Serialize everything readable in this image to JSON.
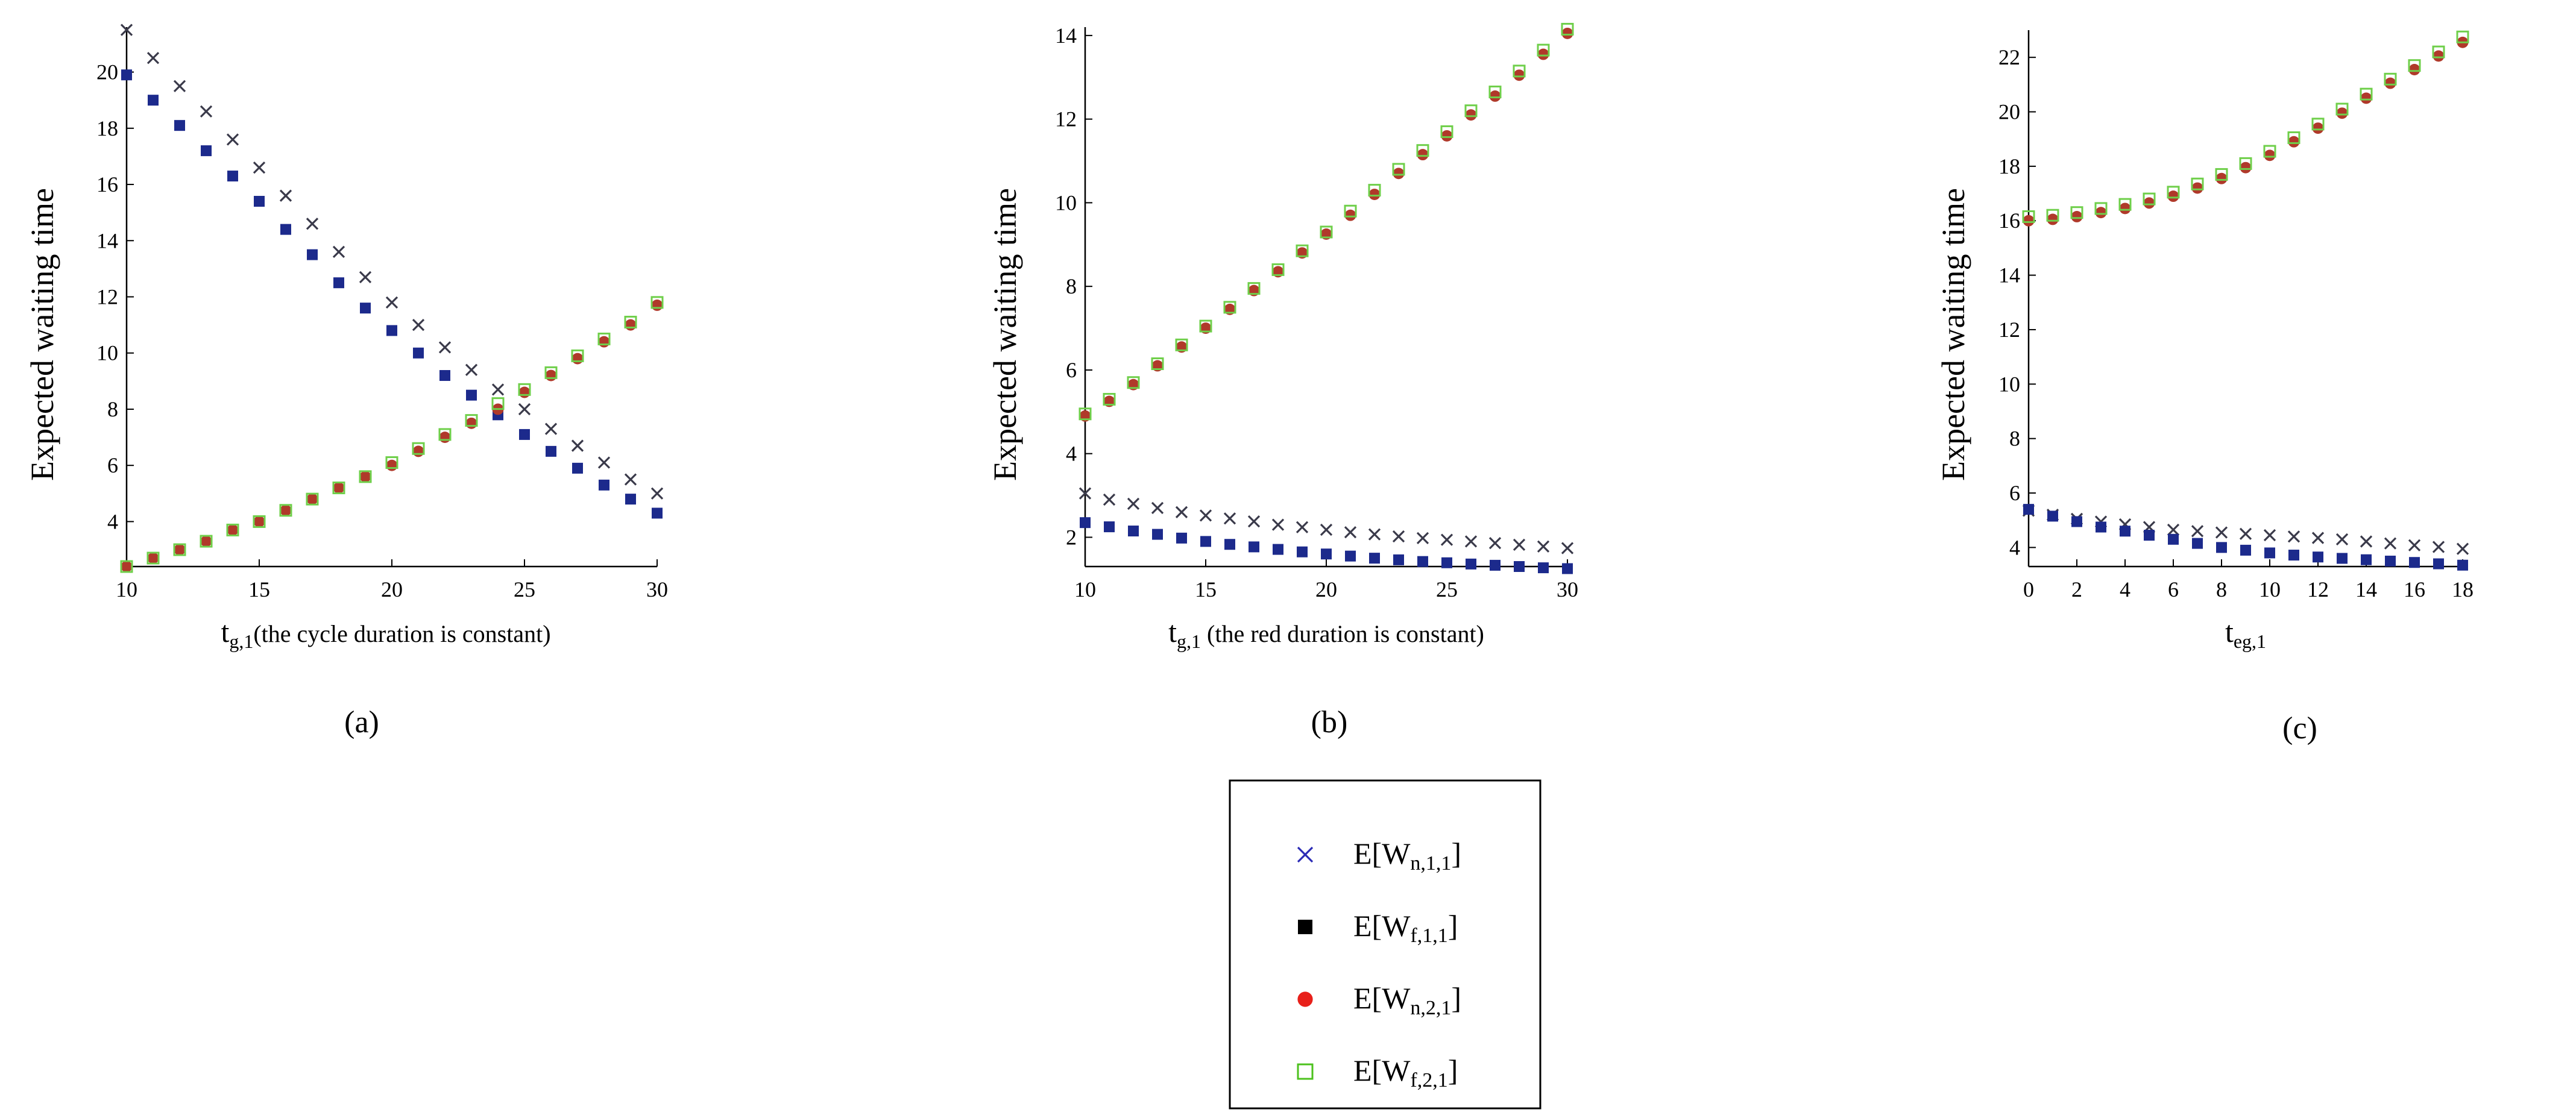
{
  "figure": {
    "captions": [
      "(a)",
      "(b)",
      "(c)"
    ]
  },
  "legend": {
    "entries": [
      {
        "series": "E[W_n,1,1]",
        "main": "E[W",
        "sub": "n,1,1",
        "close": "]",
        "marker": "x",
        "color": "#2b2bb5"
      },
      {
        "series": "E[W_f,1,1]",
        "main": "E[W",
        "sub": "f,1,1",
        "close": "]",
        "marker": "square",
        "color": "#000000"
      },
      {
        "series": "E[W_n,2,1]",
        "main": "E[W",
        "sub": "n,2,1",
        "close": "]",
        "marker": "circle",
        "color": "#e8201a"
      },
      {
        "series": "E[W_f,2,1]",
        "main": "E[W",
        "sub": "f,2,1",
        "close": "]",
        "marker": "open-square",
        "color": "#4cc21e"
      }
    ]
  },
  "series_styles": {
    "Wn11": {
      "marker": "x",
      "color": "#3a3a4a"
    },
    "Wf11": {
      "marker": "square",
      "color": "#1c2a8c"
    },
    "Wn21": {
      "marker": "circle",
      "color": "#b0392a"
    },
    "Wf21": {
      "marker": "open-square",
      "color": "#6fcf4a"
    }
  },
  "chart_data": [
    {
      "id": "a",
      "type": "scatter",
      "title": "",
      "ylabel": "Expected waiting time",
      "xlabel_main": "t",
      "xlabel_sub": "g,1",
      "xlabel_rest": "(the cycle duration is constant)",
      "xlim": [
        10,
        30
      ],
      "ylim": [
        2.4,
        21.6
      ],
      "xticks": [
        10,
        15,
        20,
        25,
        30
      ],
      "yticks": [
        4,
        6,
        8,
        10,
        12,
        14,
        16,
        18,
        20
      ],
      "x": [
        10,
        11,
        12,
        13,
        14,
        15,
        16,
        17,
        18,
        19,
        20,
        21,
        22,
        23,
        24,
        25,
        26,
        27,
        28,
        29,
        30
      ],
      "series": [
        {
          "name": "E[W_n,1,1]",
          "key": "Wn11",
          "values": [
            21.5,
            20.5,
            19.5,
            18.6,
            17.6,
            16.6,
            15.6,
            14.6,
            13.6,
            12.7,
            11.8,
            11.0,
            10.2,
            9.4,
            8.7,
            8.0,
            7.3,
            6.7,
            6.1,
            5.5,
            5.0
          ]
        },
        {
          "name": "E[W_f,1,1]",
          "key": "Wf11",
          "values": [
            19.9,
            19.0,
            18.1,
            17.2,
            16.3,
            15.4,
            14.4,
            13.5,
            12.5,
            11.6,
            10.8,
            10.0,
            9.2,
            8.5,
            7.8,
            7.1,
            6.5,
            5.9,
            5.3,
            4.8,
            4.3
          ]
        },
        {
          "name": "E[W_n,2,1]",
          "key": "Wn21",
          "values": [
            2.4,
            2.7,
            3.0,
            3.3,
            3.7,
            4.0,
            4.4,
            4.8,
            5.2,
            5.6,
            6.0,
            6.5,
            7.0,
            7.5,
            8.0,
            8.6,
            9.2,
            9.8,
            10.4,
            11.0,
            11.7
          ]
        },
        {
          "name": "E[W_f,2,1]",
          "key": "Wf21",
          "values": [
            2.4,
            2.7,
            3.0,
            3.3,
            3.7,
            4.0,
            4.4,
            4.8,
            5.2,
            5.6,
            6.1,
            6.6,
            7.1,
            7.6,
            8.2,
            8.7,
            9.3,
            9.9,
            10.5,
            11.1,
            11.8
          ]
        }
      ]
    },
    {
      "id": "b",
      "type": "scatter",
      "title": "",
      "ylabel": "Expected waiting time",
      "xlabel_main": "t",
      "xlabel_sub": "g,1",
      "xlabel_rest": " (the red duration is constant)",
      "xlim": [
        10,
        30
      ],
      "ylim": [
        1.3,
        14.2
      ],
      "xticks": [
        10,
        15,
        20,
        25,
        30
      ],
      "yticks": [
        2,
        4,
        6,
        8,
        10,
        12,
        14
      ],
      "x": [
        10,
        11,
        12,
        13,
        14,
        15,
        16,
        17,
        18,
        19,
        20,
        21,
        22,
        23,
        24,
        25,
        26,
        27,
        28,
        29,
        30
      ],
      "series": [
        {
          "name": "E[W_n,1,1]",
          "key": "Wn11",
          "values": [
            3.05,
            2.9,
            2.8,
            2.7,
            2.6,
            2.52,
            2.45,
            2.38,
            2.3,
            2.24,
            2.18,
            2.12,
            2.07,
            2.02,
            1.98,
            1.94,
            1.9,
            1.86,
            1.82,
            1.78,
            1.74
          ]
        },
        {
          "name": "E[W_f,1,1]",
          "key": "Wf11",
          "values": [
            2.35,
            2.25,
            2.15,
            2.07,
            1.98,
            1.9,
            1.83,
            1.77,
            1.71,
            1.65,
            1.6,
            1.55,
            1.5,
            1.46,
            1.42,
            1.39,
            1.36,
            1.33,
            1.3,
            1.27,
            1.25
          ]
        },
        {
          "name": "E[W_n,2,1]",
          "key": "Wn21",
          "values": [
            4.9,
            5.25,
            5.65,
            6.1,
            6.55,
            7.0,
            7.45,
            7.9,
            8.35,
            8.8,
            9.25,
            9.7,
            10.2,
            10.7,
            11.15,
            11.6,
            12.1,
            12.55,
            13.05,
            13.55,
            14.05
          ]
        },
        {
          "name": "E[W_f,2,1]",
          "key": "Wf21",
          "values": [
            4.95,
            5.3,
            5.7,
            6.15,
            6.6,
            7.05,
            7.5,
            7.95,
            8.4,
            8.85,
            9.3,
            9.8,
            10.3,
            10.8,
            11.25,
            11.7,
            12.2,
            12.65,
            13.15,
            13.65,
            14.15
          ]
        }
      ]
    },
    {
      "id": "c",
      "type": "scatter",
      "title": "",
      "ylabel": "Expected waiting time",
      "xlabel_main": "t",
      "xlabel_sub": "eg,1",
      "xlabel_rest": "",
      "xlim": [
        0,
        18
      ],
      "ylim": [
        3.3,
        23.0
      ],
      "xticks": [
        0,
        2,
        4,
        6,
        8,
        10,
        12,
        14,
        16,
        18
      ],
      "yticks": [
        4,
        6,
        8,
        10,
        12,
        14,
        16,
        18,
        20,
        22
      ],
      "x": [
        0,
        1,
        2,
        3,
        4,
        5,
        6,
        7,
        8,
        9,
        10,
        11,
        12,
        13,
        14,
        15,
        16,
        17,
        18
      ],
      "series": [
        {
          "name": "E[W_n,1,1]",
          "key": "Wn11",
          "values": [
            5.35,
            5.2,
            5.05,
            4.95,
            4.85,
            4.75,
            4.65,
            4.6,
            4.55,
            4.5,
            4.45,
            4.4,
            4.35,
            4.3,
            4.22,
            4.15,
            4.08,
            4.02,
            3.95
          ]
        },
        {
          "name": "E[W_f,1,1]",
          "key": "Wf11",
          "values": [
            5.4,
            5.15,
            4.95,
            4.75,
            4.6,
            4.45,
            4.3,
            4.15,
            4.0,
            3.9,
            3.8,
            3.72,
            3.65,
            3.6,
            3.55,
            3.5,
            3.45,
            3.4,
            3.35
          ]
        },
        {
          "name": "E[W_n,2,1]",
          "key": "Wn21",
          "values": [
            16.0,
            16.05,
            16.15,
            16.3,
            16.45,
            16.65,
            16.9,
            17.2,
            17.55,
            17.95,
            18.4,
            18.9,
            19.4,
            19.95,
            20.5,
            21.05,
            21.55,
            22.05,
            22.55
          ]
        },
        {
          "name": "E[W_f,2,1]",
          "key": "Wf21",
          "values": [
            16.15,
            16.2,
            16.3,
            16.45,
            16.6,
            16.8,
            17.05,
            17.35,
            17.7,
            18.1,
            18.55,
            19.05,
            19.55,
            20.1,
            20.65,
            21.2,
            21.7,
            22.2,
            22.75
          ]
        }
      ]
    }
  ]
}
